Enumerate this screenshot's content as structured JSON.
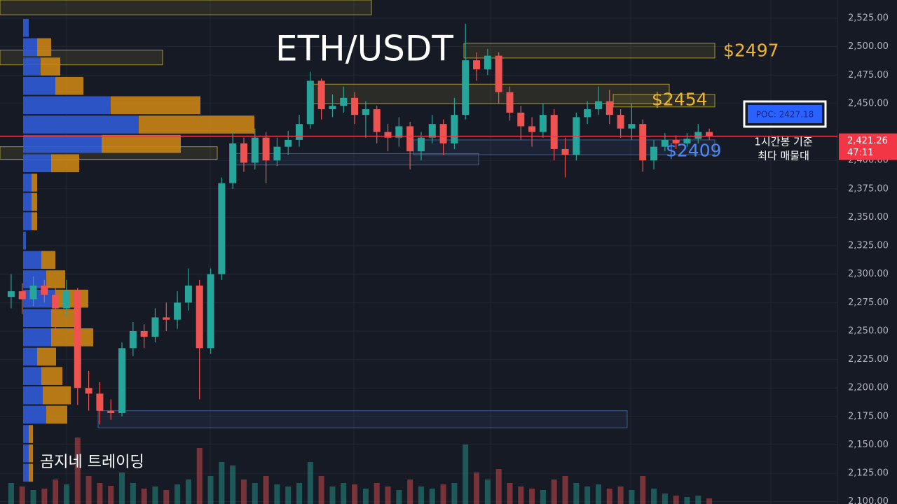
{
  "chart_data": {
    "type": "candlestick",
    "title": "ETH/USDT",
    "ylim": [
      2098,
      2541
    ],
    "yticks": [
      {
        "value": 2100,
        "label": "2,100.00"
      },
      {
        "value": 2125,
        "label": "2,125.00"
      },
      {
        "value": 2150,
        "label": "2,150.00"
      },
      {
        "value": 2175,
        "label": "2,175.00"
      },
      {
        "value": 2200,
        "label": "2,200.00"
      },
      {
        "value": 2225,
        "label": "2,225.00"
      },
      {
        "value": 2250,
        "label": "2,250.00"
      },
      {
        "value": 2275,
        "label": "2,275.00"
      },
      {
        "value": 2300,
        "label": "2,300.00"
      },
      {
        "value": 2325,
        "label": "2,325.00"
      },
      {
        "value": 2350,
        "label": "2,350.00"
      },
      {
        "value": 2375,
        "label": "2,375.00"
      },
      {
        "value": 2400,
        "label": "2,400.00"
      },
      {
        "value": 2450,
        "label": "2,450.00"
      },
      {
        "value": 2475,
        "label": "2,475.00"
      },
      {
        "value": 2500,
        "label": "2,500.00"
      },
      {
        "value": 2525,
        "label": "2,525.00"
      }
    ],
    "up_color": "#26a69a",
    "down_color": "#ef5350",
    "open": [
      2280,
      2285,
      2278,
      2290,
      2282,
      2270,
      2285,
      2200,
      2195,
      2180,
      2178,
      2235,
      2250,
      2245,
      2262,
      2260,
      2275,
      2290,
      2235,
      2300,
      2380,
      2415,
      2398,
      2420,
      2400,
      2412,
      2418,
      2432,
      2470,
      2445,
      2448,
      2455,
      2440,
      2445,
      2425,
      2420,
      2430,
      2408,
      2420,
      2432,
      2415,
      2440,
      2488,
      2480,
      2492,
      2460,
      2442,
      2430,
      2425,
      2440,
      2410,
      2405,
      2438,
      2445,
      2452,
      2440,
      2428,
      2432,
      2400,
      2412,
      2418,
      2415,
      2419,
      2425
    ],
    "high": [
      2300,
      2292,
      2298,
      2295,
      2288,
      2295,
      2288,
      2215,
      2205,
      2190,
      2240,
      2258,
      2256,
      2270,
      2275,
      2285,
      2305,
      2295,
      2305,
      2385,
      2425,
      2420,
      2428,
      2425,
      2420,
      2426,
      2440,
      2478,
      2472,
      2458,
      2465,
      2460,
      2452,
      2448,
      2432,
      2438,
      2434,
      2425,
      2440,
      2436,
      2455,
      2520,
      2495,
      2498,
      2495,
      2465,
      2448,
      2438,
      2450,
      2445,
      2420,
      2442,
      2452,
      2465,
      2462,
      2445,
      2450,
      2436,
      2418,
      2424,
      2422,
      2424,
      2432,
      2428
    ],
    "low": [
      2270,
      2265,
      2272,
      2275,
      2245,
      2262,
      2185,
      2180,
      2168,
      2172,
      2175,
      2228,
      2235,
      2240,
      2250,
      2252,
      2268,
      2190,
      2230,
      2295,
      2375,
      2390,
      2392,
      2380,
      2395,
      2405,
      2412,
      2428,
      2436,
      2438,
      2442,
      2432,
      2420,
      2415,
      2408,
      2412,
      2392,
      2400,
      2415,
      2405,
      2410,
      2436,
      2470,
      2475,
      2450,
      2435,
      2418,
      2412,
      2420,
      2400,
      2385,
      2400,
      2432,
      2440,
      2432,
      2420,
      2418,
      2390,
      2392,
      2408,
      2410,
      2412,
      2415,
      2418
    ],
    "close": [
      2285,
      2278,
      2290,
      2282,
      2270,
      2285,
      2200,
      2195,
      2180,
      2178,
      2235,
      2250,
      2245,
      2262,
      2260,
      2275,
      2290,
      2235,
      2300,
      2380,
      2415,
      2398,
      2420,
      2400,
      2412,
      2418,
      2432,
      2470,
      2445,
      2448,
      2455,
      2440,
      2445,
      2425,
      2420,
      2430,
      2408,
      2420,
      2432,
      2415,
      2440,
      2488,
      2480,
      2492,
      2460,
      2442,
      2430,
      2425,
      2440,
      2410,
      2405,
      2438,
      2445,
      2452,
      2440,
      2428,
      2432,
      2400,
      2412,
      2418,
      2415,
      2419,
      2425,
      2421.26
    ],
    "volume": [
      30,
      25,
      20,
      22,
      35,
      28,
      95,
      40,
      30,
      26,
      45,
      30,
      22,
      25,
      20,
      28,
      35,
      80,
      40,
      60,
      55,
      35,
      30,
      40,
      28,
      25,
      30,
      60,
      40,
      25,
      30,
      28,
      22,
      30,
      25,
      20,
      35,
      25,
      22,
      28,
      30,
      85,
      45,
      35,
      50,
      30,
      25,
      22,
      20,
      35,
      40,
      30,
      25,
      28,
      22,
      25,
      20,
      40,
      22,
      15,
      12,
      10,
      12,
      8
    ],
    "volume_profile": {
      "bins": [
        2117,
        2134,
        2151,
        2168,
        2185,
        2202,
        2219,
        2236,
        2253,
        2270,
        2287,
        2304,
        2321,
        2338,
        2355,
        2372,
        2389,
        2406,
        2423,
        2440,
        2457,
        2474,
        2491,
        2508,
        2525
      ],
      "buy": [
        8,
        8,
        8,
        33,
        28,
        26,
        20,
        40,
        40,
        46,
        33,
        26,
        4,
        12,
        12,
        12,
        40,
        112,
        165,
        125,
        46,
        25,
        20,
        8
      ],
      "sell": [
        6,
        6,
        6,
        30,
        40,
        30,
        27,
        60,
        40,
        47,
        27,
        20,
        0,
        8,
        8,
        8,
        40,
        113,
        165,
        128,
        40,
        28,
        20,
        0
      ],
      "buy_color": "#2f5bd6",
      "sell_color": "#c98414"
    },
    "zones": [
      {
        "low": 2528,
        "high": 2541,
        "color": "#c9b43a"
      },
      {
        "low": 2484,
        "high": 2497,
        "color": "#c9b43a"
      },
      {
        "low": 2401,
        "high": 2412,
        "color": "#c9b43a"
      },
      {
        "low": 2490,
        "high": 2503,
        "color": "#c9b43a"
      },
      {
        "low": 2450,
        "high": 2467,
        "color": "#c9b43a"
      },
      {
        "low": 2447,
        "high": 2458,
        "color": "#c9b43a"
      },
      {
        "low": 2405,
        "high": 2418,
        "color": "#4a6fa5"
      },
      {
        "low": 2396,
        "high": 2406,
        "color": "#4a6fa5"
      },
      {
        "low": 2165,
        "high": 2180,
        "color": "#4a6fa5"
      }
    ],
    "annotations": [
      {
        "label": "$2497",
        "value": 2497,
        "color": "#f0b429"
      },
      {
        "label": "$2454",
        "value": 2454,
        "color": "#f0b429"
      },
      {
        "label": "$2409",
        "value": 2409,
        "color": "#4a8af4"
      }
    ],
    "poc": {
      "label": "POC: 2427.18",
      "value": 2427.18
    },
    "poc_note": [
      "1시간봉 기준",
      "최다 매물대"
    ],
    "last_price": {
      "value": 2421.26,
      "label": "2,421.26"
    },
    "countdown": "47:11",
    "watermark": "곰지네 트레이딩"
  }
}
